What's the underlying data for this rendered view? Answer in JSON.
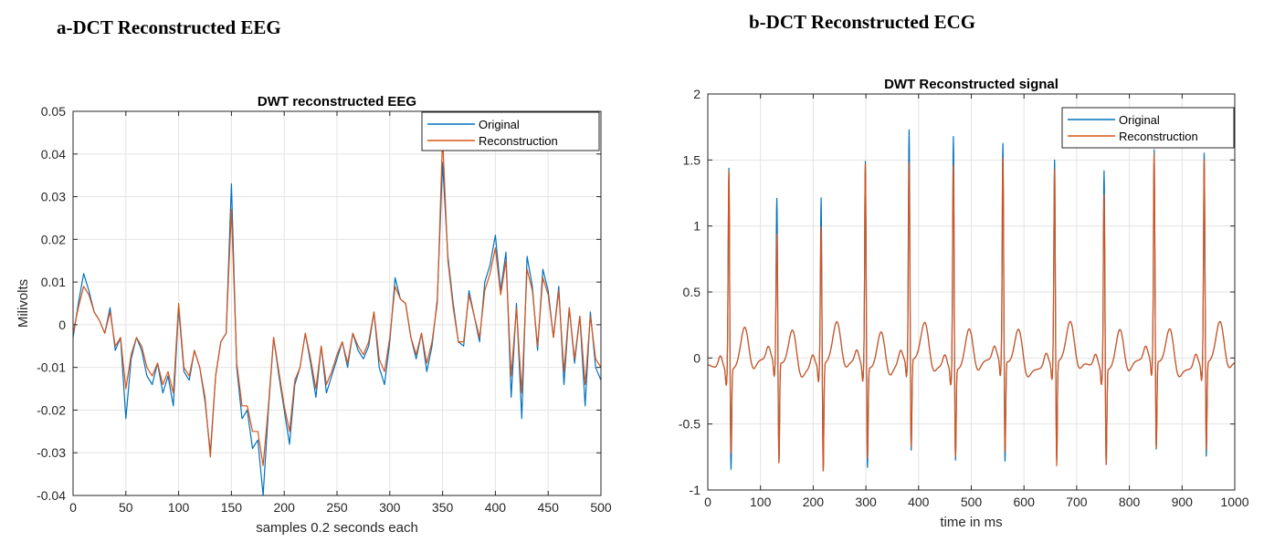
{
  "panel_a_caption": "a-DCT Reconstructed EEG",
  "panel_b_caption": "b-DCT Reconstructed ECG",
  "colors": {
    "original": "#0072BD",
    "reconstruction": "#D95319",
    "grid": "#e3e3e3",
    "axes": "#262626"
  },
  "chart_data": [
    {
      "type": "line",
      "title": "DWT reconstructed EEG",
      "xlabel": "samples 0.2 seconds each",
      "ylabel": "Milivolts",
      "xlim": [
        0,
        500
      ],
      "ylim": [
        -0.04,
        0.05
      ],
      "xticks": [
        0,
        50,
        100,
        150,
        200,
        250,
        300,
        350,
        400,
        450,
        500
      ],
      "yticks": [
        -0.04,
        -0.03,
        -0.02,
        -0.01,
        0,
        0.01,
        0.02,
        0.03,
        0.04,
        0.05
      ],
      "ytick_labels": [
        "-0.04",
        "-0.03",
        "-0.02",
        "-0.01",
        "0",
        "0.01",
        "0.02",
        "0.03",
        "0.04",
        "0.05"
      ],
      "grid": true,
      "legend_position": "top-right",
      "series": [
        {
          "name": "Original",
          "x": [
            0,
            5,
            10,
            15,
            20,
            25,
            30,
            35,
            40,
            45,
            50,
            55,
            60,
            65,
            70,
            75,
            80,
            85,
            90,
            95,
            100,
            105,
            110,
            115,
            120,
            125,
            130,
            135,
            140,
            145,
            150,
            155,
            160,
            165,
            170,
            175,
            180,
            185,
            190,
            195,
            200,
            205,
            210,
            215,
            220,
            225,
            230,
            235,
            240,
            245,
            250,
            255,
            260,
            265,
            270,
            275,
            280,
            285,
            290,
            295,
            300,
            305,
            310,
            315,
            320,
            325,
            330,
            335,
            340,
            345,
            350,
            355,
            360,
            365,
            370,
            375,
            380,
            385,
            390,
            395,
            400,
            405,
            410,
            415,
            420,
            425,
            430,
            435,
            440,
            445,
            450,
            455,
            460,
            465,
            470,
            475,
            480,
            485,
            490,
            495,
            500
          ],
          "y": [
            -0.003,
            0.005,
            0.012,
            0.008,
            0.003,
            0.001,
            -0.002,
            0.004,
            -0.006,
            -0.003,
            -0.022,
            -0.008,
            -0.003,
            -0.006,
            -0.012,
            -0.014,
            -0.009,
            -0.016,
            -0.012,
            -0.019,
            0.004,
            -0.011,
            -0.013,
            -0.006,
            -0.01,
            -0.018,
            -0.03,
            -0.012,
            -0.004,
            -0.002,
            0.033,
            -0.01,
            -0.022,
            -0.02,
            -0.029,
            -0.027,
            -0.04,
            -0.02,
            -0.003,
            -0.012,
            -0.02,
            -0.028,
            -0.014,
            -0.01,
            -0.002,
            -0.009,
            -0.017,
            -0.005,
            -0.016,
            -0.012,
            -0.008,
            -0.004,
            -0.01,
            -0.002,
            -0.006,
            -0.008,
            -0.005,
            0.003,
            -0.01,
            -0.014,
            -0.004,
            0.011,
            0.006,
            0.005,
            -0.003,
            -0.008,
            -0.002,
            -0.011,
            -0.005,
            0.006,
            0.038,
            0.016,
            0.005,
            -0.004,
            -0.005,
            0.008,
            0.002,
            -0.004,
            0.01,
            0.014,
            0.021,
            0.008,
            0.017,
            -0.017,
            0.005,
            -0.022,
            0.016,
            0.009,
            -0.006,
            0.013,
            0.008,
            -0.003,
            0.009,
            -0.014,
            0.004,
            -0.009,
            0.002,
            -0.019,
            0.003,
            -0.01,
            -0.013
          ]
        },
        {
          "name": "Reconstruction",
          "x": [
            0,
            5,
            10,
            15,
            20,
            25,
            30,
            35,
            40,
            45,
            50,
            55,
            60,
            65,
            70,
            75,
            80,
            85,
            90,
            95,
            100,
            105,
            110,
            115,
            120,
            125,
            130,
            135,
            140,
            145,
            150,
            155,
            160,
            165,
            170,
            175,
            180,
            185,
            190,
            195,
            200,
            205,
            210,
            215,
            220,
            225,
            230,
            235,
            240,
            245,
            250,
            255,
            260,
            265,
            270,
            275,
            280,
            285,
            290,
            295,
            300,
            305,
            310,
            315,
            320,
            325,
            330,
            335,
            340,
            345,
            350,
            355,
            360,
            365,
            370,
            375,
            380,
            385,
            390,
            395,
            400,
            405,
            410,
            415,
            420,
            425,
            430,
            435,
            440,
            445,
            450,
            455,
            460,
            465,
            470,
            475,
            480,
            485,
            490,
            495,
            500
          ],
          "y": [
            -0.002,
            0.004,
            0.009,
            0.007,
            0.003,
            0.001,
            -0.002,
            0.003,
            -0.005,
            -0.003,
            -0.015,
            -0.007,
            -0.003,
            -0.005,
            -0.01,
            -0.012,
            -0.009,
            -0.014,
            -0.011,
            -0.016,
            0.005,
            -0.01,
            -0.012,
            -0.006,
            -0.01,
            -0.017,
            -0.031,
            -0.012,
            -0.004,
            -0.002,
            0.027,
            -0.009,
            -0.019,
            -0.019,
            -0.025,
            -0.025,
            -0.033,
            -0.019,
            -0.003,
            -0.011,
            -0.019,
            -0.025,
            -0.013,
            -0.01,
            -0.002,
            -0.008,
            -0.015,
            -0.005,
            -0.014,
            -0.011,
            -0.007,
            -0.004,
            -0.009,
            -0.002,
            -0.005,
            -0.007,
            -0.004,
            0.003,
            -0.008,
            -0.011,
            -0.003,
            0.009,
            0.006,
            0.005,
            -0.003,
            -0.007,
            -0.002,
            -0.009,
            -0.004,
            0.005,
            0.044,
            0.015,
            0.004,
            -0.004,
            -0.004,
            0.007,
            0.002,
            -0.003,
            0.008,
            0.012,
            0.018,
            0.007,
            0.015,
            -0.012,
            0.004,
            -0.016,
            0.013,
            0.008,
            -0.005,
            0.011,
            0.007,
            -0.003,
            0.008,
            -0.011,
            0.004,
            -0.008,
            0.002,
            -0.014,
            0.002,
            -0.008,
            -0.01
          ]
        }
      ]
    },
    {
      "type": "line",
      "title": "DWT Reconstructed signal",
      "xlabel": "time in ms",
      "ylabel": "",
      "xlim": [
        0,
        1000
      ],
      "ylim": [
        -1,
        2
      ],
      "xticks": [
        0,
        100,
        200,
        300,
        400,
        500,
        600,
        700,
        800,
        900,
        1000
      ],
      "yticks": [
        -1,
        -0.5,
        0,
        0.5,
        1,
        1.5,
        2
      ],
      "ytick_labels": [
        "-1",
        "-0.5",
        "0",
        "0.5",
        "1",
        "1.5",
        "2"
      ],
      "grid": true,
      "legend_position": "top-right",
      "beat_times": [
        40,
        131,
        215,
        299,
        382,
        466,
        560,
        658,
        752,
        847,
        942
      ],
      "r_peaks_original": [
        1.48,
        1.19,
        1.22,
        1.51,
        1.7,
        1.72,
        1.6,
        1.49,
        1.46,
        1.55,
        1.55
      ],
      "r_peaks_reconstruction": [
        1.46,
        0.92,
        1.0,
        1.49,
        1.45,
        1.5,
        1.49,
        1.42,
        1.28,
        1.52,
        1.5
      ],
      "s_troughs_original": [
        -0.82,
        -0.82,
        -0.87,
        -0.82,
        -0.75,
        -0.75,
        -0.82,
        -0.8,
        -0.78,
        -0.73,
        -0.77
      ],
      "s_troughs_reconstruction": [
        -0.7,
        -0.82,
        -0.87,
        -0.75,
        -0.72,
        -0.72,
        -0.75,
        -0.85,
        -0.78,
        -0.72,
        -0.72
      ],
      "t_wave_peak": 0.24,
      "baseline": -0.05,
      "series": [
        {
          "name": "Original"
        },
        {
          "name": "Reconstruction"
        }
      ]
    }
  ]
}
